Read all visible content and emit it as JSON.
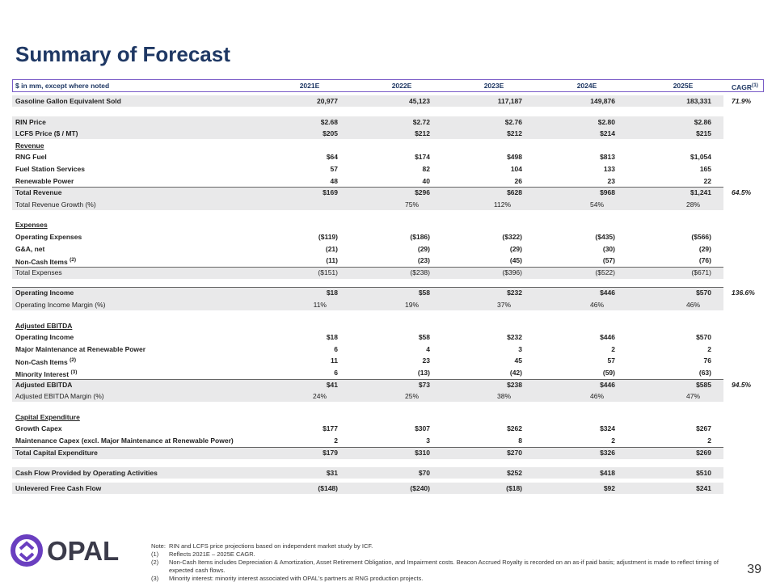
{
  "title": "Summary of Forecast",
  "table": {
    "header": {
      "label": "$ in mm, except where noted",
      "columns": [
        "2021E",
        "2022E",
        "2023E",
        "2024E",
        "2025E"
      ],
      "cagr": "CAGR",
      "cagr_note": "(1)"
    },
    "rows": [
      {
        "label": "Gasoline Gallon Equivalent Sold",
        "values": [
          "20,977",
          "45,123",
          "117,187",
          "149,876",
          "183,331"
        ],
        "cagr": "71.9%"
      },
      {
        "label": "RIN Price",
        "values": [
          "$2.68",
          "$2.72",
          "$2.76",
          "$2.80",
          "$2.86"
        ]
      },
      {
        "label": "LCFS Price ($ / MT)",
        "values": [
          "$205",
          "$212",
          "$212",
          "$214",
          "$215"
        ]
      },
      {
        "label": "Revenue"
      },
      {
        "label": "RNG Fuel",
        "values": [
          "$64",
          "$174",
          "$498",
          "$813",
          "$1,054"
        ]
      },
      {
        "label": "Fuel Station Services",
        "values": [
          "57",
          "82",
          "104",
          "133",
          "165"
        ]
      },
      {
        "label": "Renewable Power",
        "values": [
          "48",
          "40",
          "26",
          "23",
          "22"
        ]
      },
      {
        "label": "Total Revenue",
        "values": [
          "$169",
          "$296",
          "$628",
          "$968",
          "$1,241"
        ],
        "cagr": "64.5%"
      },
      {
        "label": "Total Revenue Growth (%)",
        "values": [
          null,
          "75%",
          "112%",
          "54%",
          "28%"
        ]
      },
      {
        "label": "Expenses"
      },
      {
        "label": "Operating Expenses",
        "values": [
          "($119)",
          "($186)",
          "($322)",
          "($435)",
          "($566)"
        ]
      },
      {
        "label": "G&A, net",
        "values": [
          "(21)",
          "(29)",
          "(29)",
          "(30)",
          "(29)"
        ]
      },
      {
        "label": "Non-Cash Items",
        "note": "(2)",
        "values": [
          "(11)",
          "(23)",
          "(45)",
          "(57)",
          "(76)"
        ]
      },
      {
        "label": "Total Expenses",
        "values": [
          "($151)",
          "($238)",
          "($396)",
          "($522)",
          "($671)"
        ]
      },
      {
        "label": "Operating Income",
        "values": [
          "$18",
          "$58",
          "$232",
          "$446",
          "$570"
        ],
        "cagr": "136.6%"
      },
      {
        "label": "Operating Income Margin (%)",
        "values": [
          "11%",
          "19%",
          "37%",
          "46%",
          "46%"
        ]
      },
      {
        "label": "Adjusted EBITDA"
      },
      {
        "label": "Operating Income",
        "values": [
          "$18",
          "$58",
          "$232",
          "$446",
          "$570"
        ]
      },
      {
        "label": "Major Maintenance at Renewable Power",
        "values": [
          "6",
          "4",
          "3",
          "2",
          "2"
        ]
      },
      {
        "label": "Non-Cash Items",
        "note": "(2)",
        "values": [
          "11",
          "23",
          "45",
          "57",
          "76"
        ]
      },
      {
        "label": "Minority Interest",
        "note": "(3)",
        "values": [
          "6",
          "(13)",
          "(42)",
          "(59)",
          "(63)"
        ]
      },
      {
        "label": "Adjusted EBITDA",
        "values": [
          "$41",
          "$73",
          "$238",
          "$446",
          "$585"
        ],
        "cagr": "94.5%"
      },
      {
        "label": "Adjusted EBITDA Margin (%)",
        "values": [
          "24%",
          "25%",
          "38%",
          "46%",
          "47%"
        ]
      },
      {
        "label": "Capital Expenditure"
      },
      {
        "label": "Growth Capex",
        "values": [
          "$177",
          "$307",
          "$262",
          "$324",
          "$267"
        ]
      },
      {
        "label": "Maintenance Capex (excl. Major Maintenance at Renewable Power)",
        "values": [
          "2",
          "3",
          "8",
          "2",
          "2"
        ]
      },
      {
        "label": "Total Capital Expenditure",
        "values": [
          "$179",
          "$310",
          "$270",
          "$326",
          "$269"
        ]
      },
      {
        "label": "Cash Flow Provided by Operating Activities",
        "values": [
          "$31",
          "$70",
          "$252",
          "$418",
          "$510"
        ]
      },
      {
        "label": "Unlevered Free Cash Flow",
        "values": [
          "($148)",
          "($240)",
          "($18)",
          "$92",
          "$241"
        ]
      }
    ]
  },
  "notes": {
    "lead": "Note:",
    "intro": "RIN and LCFS price projections based on independent market study by ICF.",
    "items": [
      {
        "marker": "(1)",
        "text": "Reflects 2021E – 2025E CAGR."
      },
      {
        "marker": "(2)",
        "text": "Non-Cash Items includes Depreciation & Amortization, Asset Retirement Obligation, and Impairment costs. Beacon Accrued Royalty is recorded on an as-if paid basis; adjustment is made to reflect timing of expected cash flows."
      },
      {
        "marker": "(3)",
        "text": "Minority interest: minority interest associated with OPAL's partners at RNG production projects."
      }
    ]
  },
  "logo": "OPAL",
  "page_number": "39"
}
